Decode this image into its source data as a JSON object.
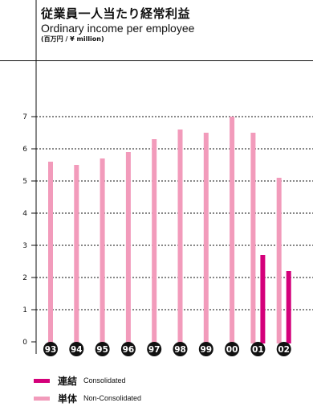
{
  "header": {
    "title_ja": "従業員一人当たり経常利益",
    "title_en": "Ordinary income per employee",
    "unit": "(百万円 / ¥ million)"
  },
  "colors": {
    "consolidated": "#d4007a",
    "non_consolidated": "#f29bbb",
    "axis": "#111111",
    "label_circle": "#111111"
  },
  "legend": [
    {
      "key": "consolidated",
      "label_ja": "連結",
      "label_en": "Consolidated"
    },
    {
      "key": "non_consolidated",
      "label_ja": "単体",
      "label_en": "Non-Consolidated"
    }
  ],
  "chart_data": {
    "type": "bar",
    "categories": [
      "93",
      "94",
      "95",
      "96",
      "97",
      "98",
      "99",
      "00",
      "01",
      "02"
    ],
    "series": [
      {
        "name": "単体 Non-Consolidated",
        "key": "non_consolidated",
        "values": [
          5.6,
          5.5,
          5.7,
          5.9,
          6.3,
          6.6,
          6.5,
          7.0,
          6.5,
          5.1
        ]
      },
      {
        "name": "連結 Consolidated",
        "key": "consolidated",
        "values": [
          null,
          null,
          null,
          null,
          null,
          null,
          null,
          null,
          2.7,
          2.2
        ]
      }
    ],
    "yticks": [
      "0",
      "1",
      "2",
      "3",
      "4",
      "5",
      "6",
      "7"
    ],
    "ylim": [
      0,
      7
    ],
    "grid": true,
    "legend_position": "bottom-left"
  }
}
